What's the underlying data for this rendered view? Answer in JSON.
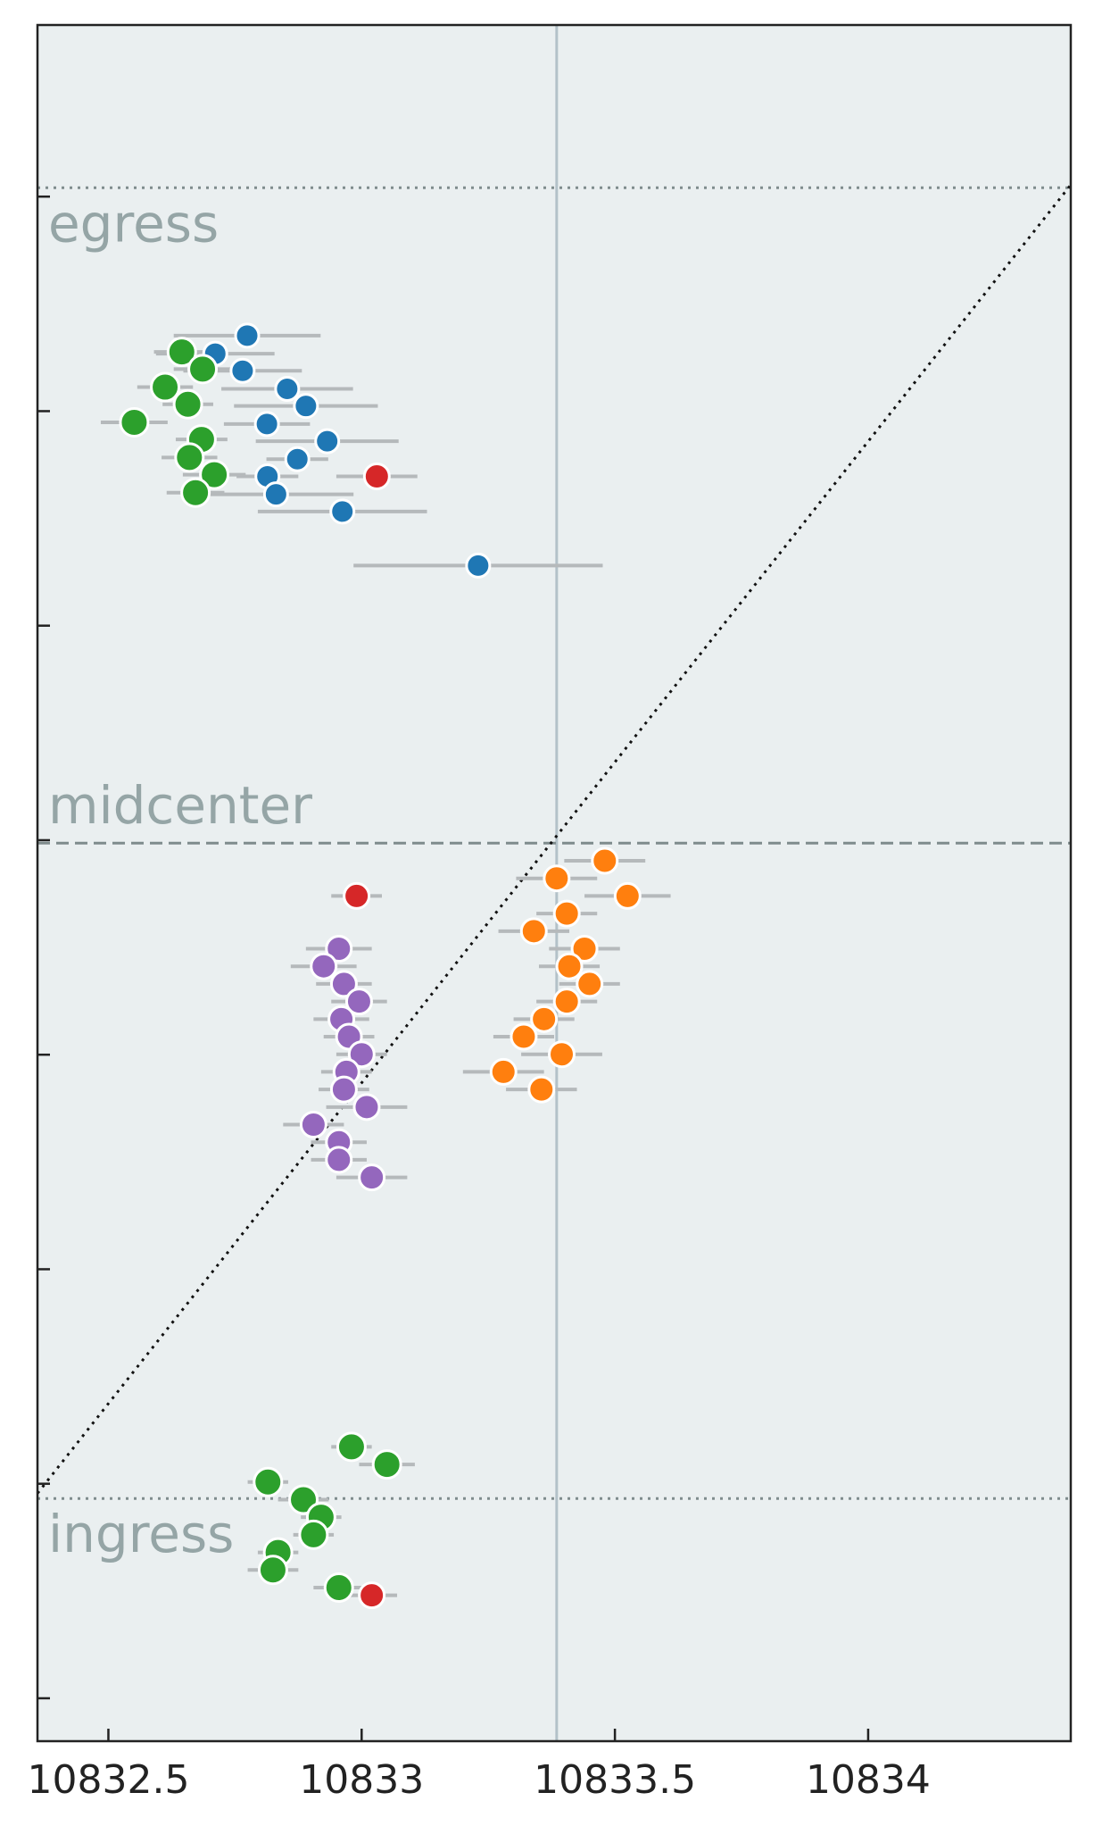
{
  "chart_data": {
    "type": "scatter",
    "title": "",
    "xlabel": "",
    "ylabel": "",
    "xlim": [
      10832.36,
      10834.4
    ],
    "ylim": [
      -0.05,
      1.95
    ],
    "x_ticks": [
      10832.5,
      10833,
      10833.5,
      10834
    ],
    "x_tick_labels": [
      "10832.5",
      "10833",
      "10833.5",
      "10834"
    ],
    "y_ticks": [
      0.0,
      0.25,
      0.5,
      0.75,
      1.0,
      1.25,
      1.5,
      1.75
    ],
    "y_tick_labels": [],
    "grid": false,
    "background_color": "#eaeff0",
    "reference_lines": {
      "vertical_x": 10833.385,
      "vertical_color": "#b3c1c8",
      "egress_y": 1.7603,
      "ingress_y": 0.2328,
      "midcenter_y": 0.9966,
      "diagonal": {
        "from": [
          10832.36,
          0.2388
        ],
        "to": [
          10834.4,
          1.7637
        ]
      }
    },
    "annotations": [
      {
        "text": "egress",
        "anchor": "egress_y"
      },
      {
        "text": "midcenter",
        "anchor": "midcenter_y"
      },
      {
        "text": "ingress",
        "anchor": "ingress_y"
      }
    ],
    "series": [
      {
        "color": "#1f77b4",
        "marker_size": "small",
        "points": [
          {
            "x": 10832.774,
            "y": 1.588,
            "err": 0.145
          },
          {
            "x": 10832.711,
            "y": 1.567,
            "err": 0.117
          },
          {
            "x": 10832.765,
            "y": 1.547,
            "err": 0.117
          },
          {
            "x": 10832.853,
            "y": 1.526,
            "err": 0.13
          },
          {
            "x": 10832.89,
            "y": 1.506,
            "err": 0.142
          },
          {
            "x": 10832.813,
            "y": 1.485,
            "err": 0.085
          },
          {
            "x": 10832.932,
            "y": 1.465,
            "err": 0.141
          },
          {
            "x": 10832.873,
            "y": 1.444,
            "err": 0.061
          },
          {
            "x": 10832.814,
            "y": 1.424,
            "err": 0.061
          },
          {
            "x": 10832.831,
            "y": 1.403,
            "err": 0.153
          },
          {
            "x": 10832.962,
            "y": 1.383,
            "err": 0.167
          },
          {
            "x": 10833.23,
            "y": 1.32,
            "err": 0.246
          }
        ]
      },
      {
        "color": "#2ca02c",
        "marker_size": "large",
        "points": [
          {
            "x": 10832.645,
            "y": 1.569,
            "err": 0.055
          },
          {
            "x": 10832.686,
            "y": 1.549,
            "err": 0.057
          },
          {
            "x": 10832.612,
            "y": 1.528,
            "err": 0.055
          },
          {
            "x": 10832.657,
            "y": 1.508,
            "err": 0.05
          },
          {
            "x": 10832.551,
            "y": 1.487,
            "err": 0.066
          },
          {
            "x": 10832.684,
            "y": 1.467,
            "err": 0.051
          },
          {
            "x": 10832.66,
            "y": 1.446,
            "err": 0.055
          },
          {
            "x": 10832.709,
            "y": 1.426,
            "err": 0.062
          },
          {
            "x": 10832.672,
            "y": 1.405,
            "err": 0.057
          }
        ]
      },
      {
        "color": "#ff7f0e",
        "marker_size": "medium",
        "points": [
          {
            "x": 10833.48,
            "y": 0.976,
            "err": 0.08
          },
          {
            "x": 10833.385,
            "y": 0.9555,
            "err": 0.08
          },
          {
            "x": 10833.525,
            "y": 0.935,
            "err": 0.085
          },
          {
            "x": 10833.405,
            "y": 0.9145,
            "err": 0.06
          },
          {
            "x": 10833.34,
            "y": 0.894,
            "err": 0.07
          },
          {
            "x": 10833.44,
            "y": 0.8735,
            "err": 0.07
          },
          {
            "x": 10833.41,
            "y": 0.853,
            "err": 0.06
          },
          {
            "x": 10833.45,
            "y": 0.8325,
            "err": 0.06
          },
          {
            "x": 10833.405,
            "y": 0.812,
            "err": 0.06
          },
          {
            "x": 10833.36,
            "y": 0.7915,
            "err": 0.06
          },
          {
            "x": 10833.32,
            "y": 0.771,
            "err": 0.06
          },
          {
            "x": 10833.395,
            "y": 0.7505,
            "err": 0.08
          },
          {
            "x": 10833.28,
            "y": 0.73,
            "err": 0.08
          },
          {
            "x": 10833.355,
            "y": 0.7095,
            "err": 0.07
          }
        ]
      },
      {
        "color": "#9467bd",
        "marker_size": "medium",
        "points": [
          {
            "x": 10832.955,
            "y": 0.8735,
            "err": 0.065
          },
          {
            "x": 10832.925,
            "y": 0.853,
            "err": 0.065
          },
          {
            "x": 10832.965,
            "y": 0.8325,
            "err": 0.055
          },
          {
            "x": 10832.995,
            "y": 0.812,
            "err": 0.055
          },
          {
            "x": 10832.96,
            "y": 0.7915,
            "err": 0.055
          },
          {
            "x": 10832.975,
            "y": 0.771,
            "err": 0.05
          },
          {
            "x": 10833.0,
            "y": 0.7505,
            "err": 0.05
          },
          {
            "x": 10832.97,
            "y": 0.73,
            "err": 0.05
          },
          {
            "x": 10832.965,
            "y": 0.7095,
            "err": 0.05
          },
          {
            "x": 10833.01,
            "y": 0.689,
            "err": 0.08
          },
          {
            "x": 10832.905,
            "y": 0.6685,
            "err": 0.06
          },
          {
            "x": 10832.955,
            "y": 0.648,
            "err": 0.055
          },
          {
            "x": 10832.955,
            "y": 0.6275,
            "err": 0.055
          },
          {
            "x": 10833.02,
            "y": 0.607,
            "err": 0.07
          }
        ]
      },
      {
        "color": "#2ca02c",
        "marker_size": "large",
        "points": [
          {
            "x": 10832.98,
            "y": 0.293,
            "err": 0.04
          },
          {
            "x": 10833.05,
            "y": 0.2725,
            "err": 0.055
          },
          {
            "x": 10832.815,
            "y": 0.252,
            "err": 0.04
          },
          {
            "x": 10832.885,
            "y": 0.2315,
            "err": 0.05
          },
          {
            "x": 10832.92,
            "y": 0.211,
            "err": 0.04
          },
          {
            "x": 10832.905,
            "y": 0.1905,
            "err": 0.04
          },
          {
            "x": 10832.835,
            "y": 0.17,
            "err": 0.04
          },
          {
            "x": 10832.825,
            "y": 0.1495,
            "err": 0.05
          },
          {
            "x": 10832.955,
            "y": 0.129,
            "err": 0.05
          }
        ]
      },
      {
        "color": "#d62728",
        "marker_size": "medium",
        "points": [
          {
            "x": 10833.03,
            "y": 1.424,
            "err": 0.08
          },
          {
            "x": 10832.99,
            "y": 0.935,
            "err": 0.05
          },
          {
            "x": 10833.02,
            "y": 0.12,
            "err": 0.05
          }
        ]
      }
    ]
  }
}
